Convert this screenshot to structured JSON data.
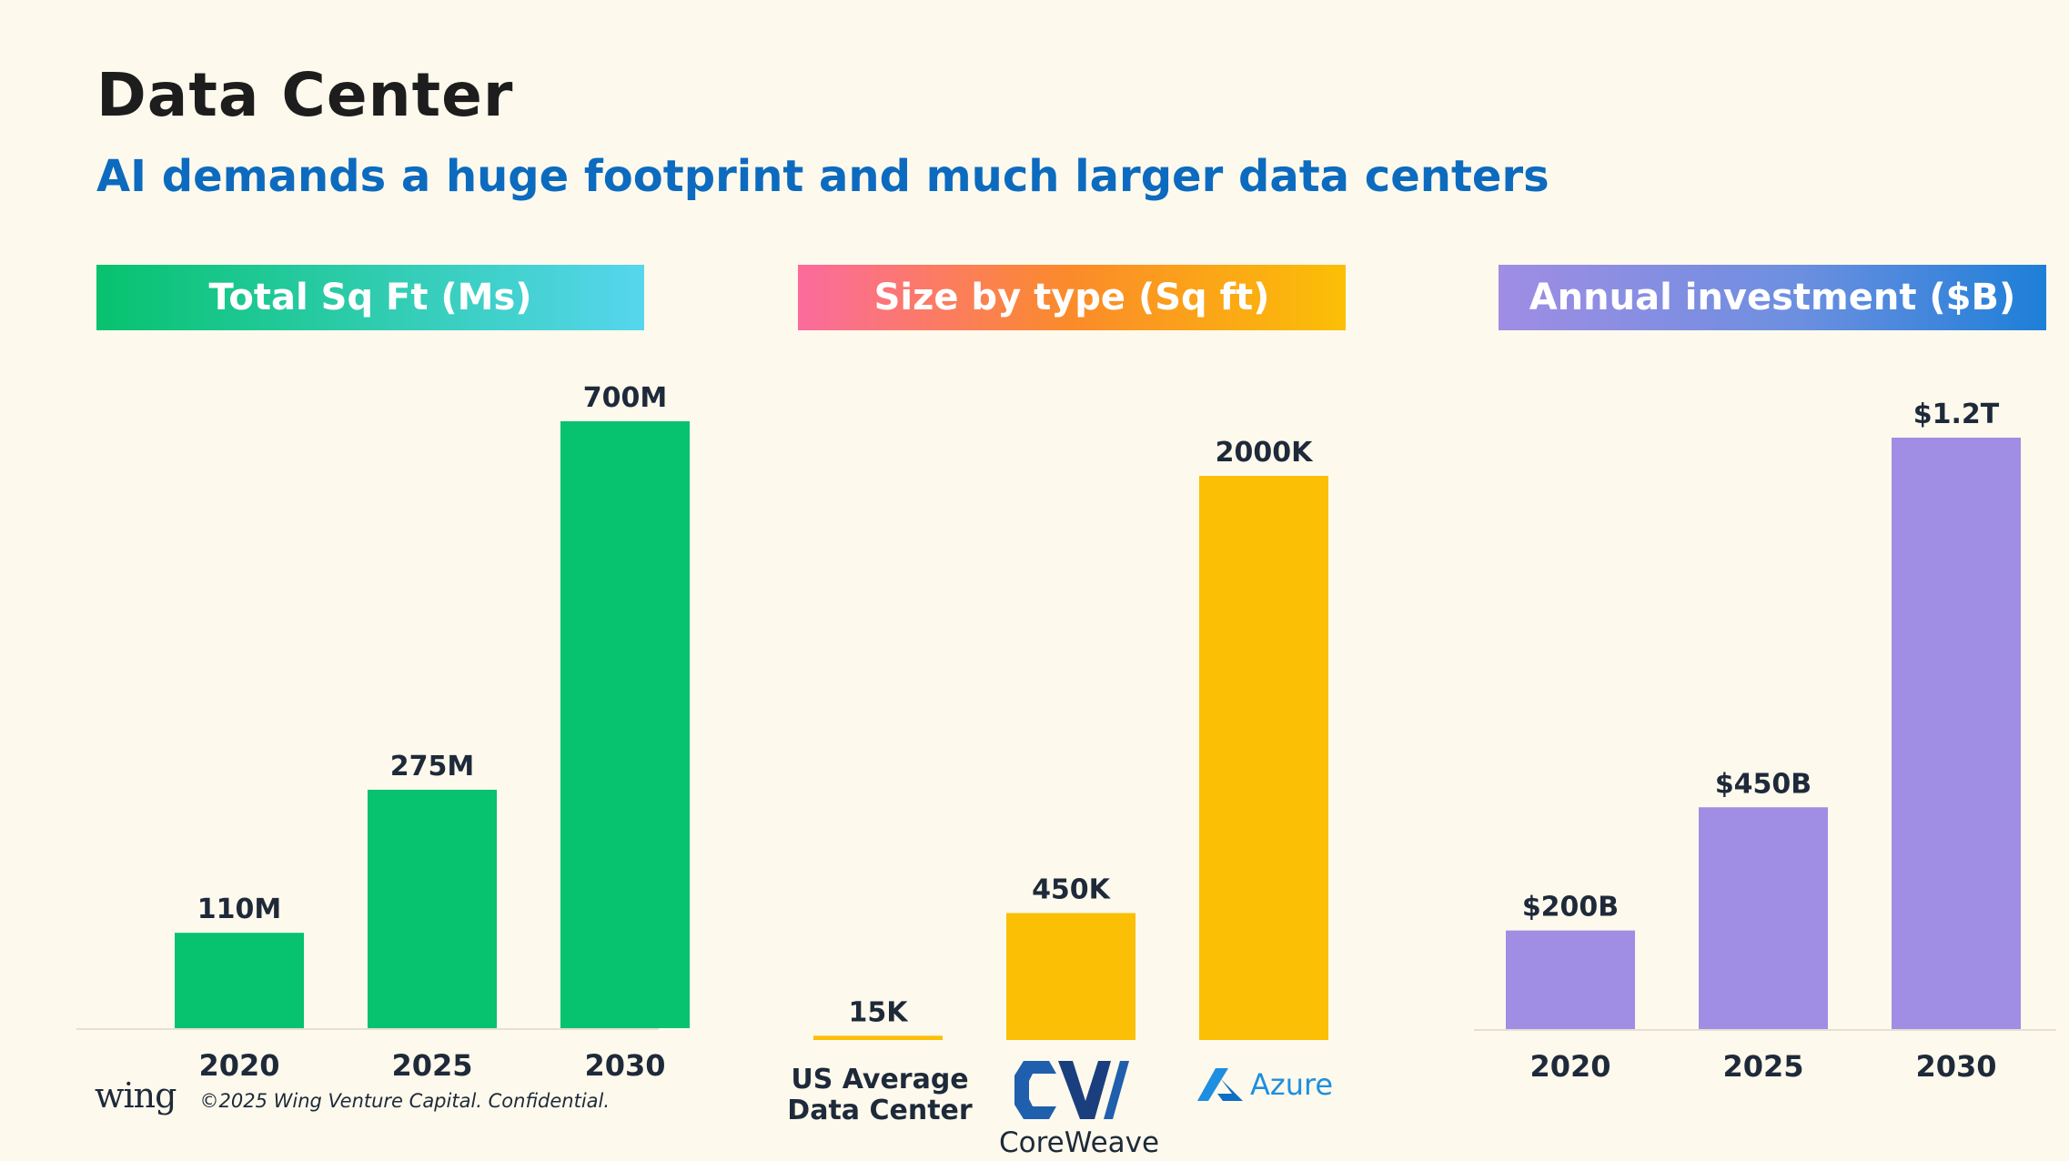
{
  "slide": {
    "title": "Data Center",
    "subtitle": "AI demands a huge footprint and much larger data centers"
  },
  "footer": {
    "logo_text": "wing",
    "copyright": "©2025 Wing Venture Capital. Confidential."
  },
  "colors": {
    "green": "#07c26e",
    "gold": "#fbbf05",
    "purple": "#a08de4",
    "text": "#1e2a3a",
    "subtitle_blue": "#0c6bbf"
  },
  "chart_data": [
    {
      "type": "bar",
      "title": "Total Sq Ft (Ms)",
      "categories": [
        "2020",
        "2025",
        "2030"
      ],
      "values": [
        110,
        275,
        700
      ],
      "value_labels": [
        "110M",
        "275M",
        "700M"
      ],
      "ylim": [
        0,
        700
      ],
      "color": "#07c26e"
    },
    {
      "type": "bar",
      "title": "Size by type (Sq ft)",
      "categories": [
        "US Average Data Center",
        "CoreWeave",
        "Azure"
      ],
      "category_lines": [
        [
          "US Average",
          "Data Center"
        ]
      ],
      "values": [
        15,
        450,
        2000
      ],
      "value_labels": [
        "15K",
        "450K",
        "2000K"
      ],
      "ylim": [
        0,
        2000
      ],
      "color": "#fbbf05"
    },
    {
      "type": "bar",
      "title": "Annual investment ($B)",
      "categories": [
        "2020",
        "2025",
        "2030"
      ],
      "values": [
        200,
        450,
        1200
      ],
      "value_labels": [
        "$200B",
        "$450B",
        "$1.2T"
      ],
      "ylim": [
        0,
        1200
      ],
      "color": "#a08de4"
    }
  ]
}
